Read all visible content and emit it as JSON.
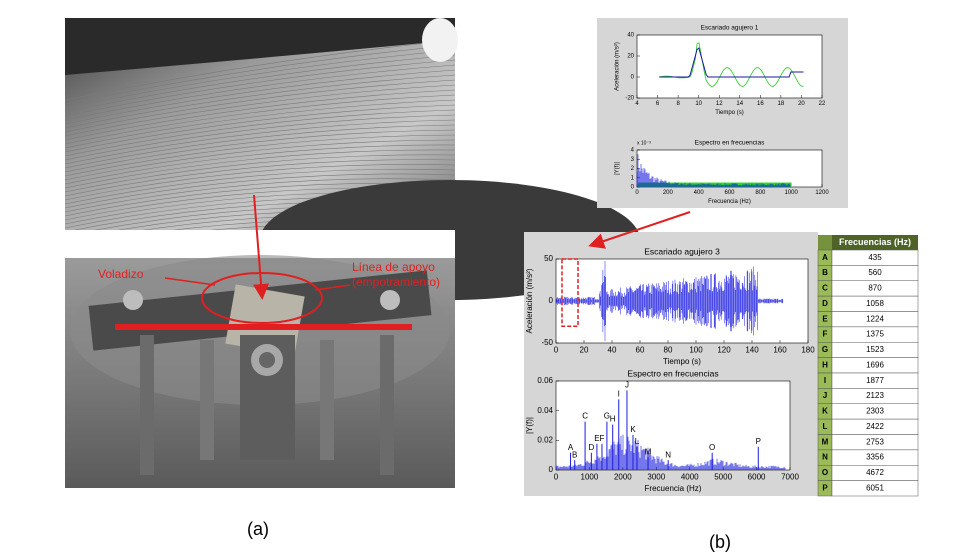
{
  "figure_a": {
    "label": "(a)",
    "annotations": [
      "Voladizo",
      "Línea de apoyo",
      "(empotramiento)"
    ]
  },
  "figure_b": {
    "label": "(b)"
  },
  "chart_data": [
    {
      "type": "line",
      "title": "Escariado agujero 1",
      "ylabel": "Aceleración (m/s²)",
      "xlabel": "Tiempo (s)",
      "xlim": [
        4,
        22
      ],
      "xticks": [
        4,
        6,
        8,
        10,
        12,
        14,
        16,
        18,
        20,
        22
      ],
      "ylim": [
        -20,
        40
      ],
      "yticks": [
        -20,
        0,
        20,
        40
      ]
    },
    {
      "type": "line",
      "title": "Espectro en frecuencias",
      "ylabel": "|Y(f)|",
      "xlabel": "Frecuencia (Hz)",
      "scale_note": "x 10⁻³",
      "xlim": [
        0,
        1200
      ],
      "xticks": [
        0,
        200,
        400,
        600,
        800,
        1000,
        1200
      ],
      "ylim": [
        0,
        4
      ],
      "yticks": [
        0,
        1,
        2,
        3,
        4
      ]
    },
    {
      "type": "line",
      "title": "Escariado agujero 3",
      "ylabel": "Aceleración (m/s²)",
      "xlabel": "Tiempo (s)",
      "xlim": [
        0,
        180
      ],
      "xticks": [
        0,
        20,
        40,
        60,
        80,
        100,
        120,
        140,
        160,
        180
      ],
      "ylim": [
        -50,
        50
      ],
      "yticks": [
        -50,
        0,
        50
      ]
    },
    {
      "type": "line",
      "title": "Espectro en frecuencias",
      "ylabel": "|Y(f)|",
      "xlabel": "Frecuencia (Hz)",
      "xlim": [
        0,
        7000
      ],
      "xticks": [
        0,
        1000,
        2000,
        3000,
        4000,
        5000,
        6000,
        7000
      ],
      "ylim": [
        0,
        0.06
      ],
      "yticks": [
        0,
        0.02,
        0.04,
        0.06
      ],
      "peaks": {
        "categories": [
          "A",
          "B",
          "C",
          "D",
          "E",
          "F",
          "G",
          "H",
          "I",
          "J",
          "K",
          "L",
          "M",
          "N",
          "O",
          "P"
        ],
        "x": [
          435,
          560,
          870,
          1058,
          1224,
          1375,
          1523,
          1696,
          1877,
          2123,
          2303,
          2422,
          2753,
          3356,
          4672,
          6051
        ],
        "values": [
          0.015,
          0.01,
          0.036,
          0.015,
          0.021,
          0.021,
          0.036,
          0.034,
          0.051,
          0.057,
          0.027,
          0.019,
          0.012,
          0.01,
          0.015,
          0.019
        ]
      }
    }
  ],
  "table": {
    "header": "Frecuencias (Hz)",
    "rows": [
      [
        "A",
        435
      ],
      [
        "B",
        560
      ],
      [
        "C",
        870
      ],
      [
        "D",
        1058
      ],
      [
        "E",
        1224
      ],
      [
        "F",
        1375
      ],
      [
        "G",
        1523
      ],
      [
        "H",
        1696
      ],
      [
        "I",
        1877
      ],
      [
        "J",
        2123
      ],
      [
        "K",
        2303
      ],
      [
        "L",
        2422
      ],
      [
        "M",
        2753
      ],
      [
        "N",
        3356
      ],
      [
        "O",
        4672
      ],
      [
        "P",
        6051
      ]
    ]
  }
}
